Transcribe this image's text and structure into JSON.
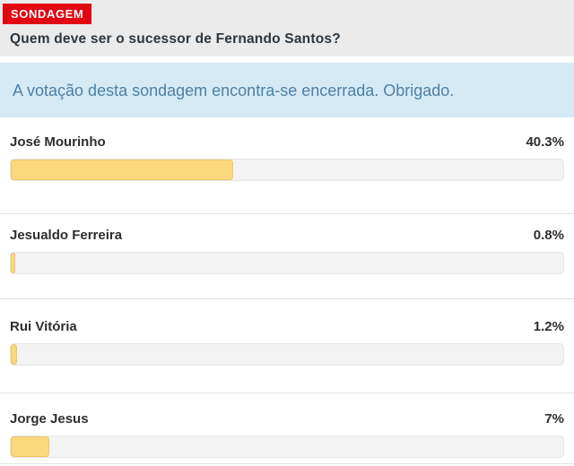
{
  "poll": {
    "badge": "SONDAGEM",
    "question": "Quem deve ser o sucessor de Fernando Santos?",
    "notice": "A votação desta sondagem encontra-se encerrada. Obrigado.",
    "results": [
      {
        "name": "José Mourinho",
        "value": "40.3%",
        "percent": 40.3
      },
      {
        "name": "Jesualdo Ferreira",
        "value": "0.8%",
        "percent": 0.8
      },
      {
        "name": "Rui Vitória",
        "value": "1.2%",
        "percent": 1.2
      },
      {
        "name": "Jorge Jesus",
        "value": "7%",
        "percent": 7
      }
    ],
    "colors": {
      "badge_bg": "#e20613",
      "badge_text": "#ffffff",
      "header_bg": "#ebebeb",
      "question_text": "#2b3640",
      "notice_bg": "#d6eaf5",
      "notice_text": "#4d80a6",
      "bar_fill": "#fbd87b",
      "bar_track": "#f3f3f3",
      "result_text": "#2e2e2e"
    }
  },
  "chart_data": {
    "type": "bar",
    "title": "Quem deve ser o sucessor de Fernando Santos?",
    "categories": [
      "José Mourinho",
      "Jesualdo Ferreira",
      "Rui Vitória",
      "Jorge Jesus"
    ],
    "values": [
      40.3,
      0.8,
      1.2,
      7
    ],
    "xlabel": "",
    "ylabel": "%",
    "xlim": [
      0,
      100
    ],
    "legend": false,
    "orientation": "horizontal"
  }
}
